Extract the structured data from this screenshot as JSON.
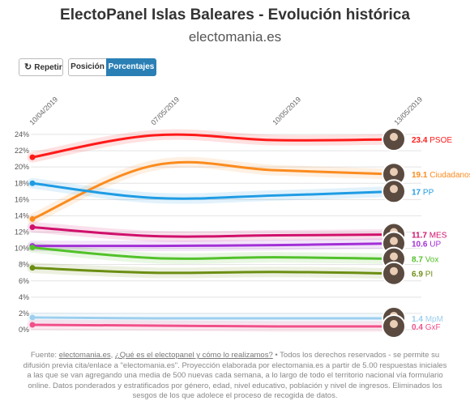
{
  "header": {
    "title": "ElectoPanel Islas Baleares - Evolución histórica",
    "subtitle": "electomania.es"
  },
  "controls": {
    "repeat_label": "Repetir",
    "repeat_icon": "refresh-icon",
    "position_label": "Posición",
    "percent_label": "Porcentajes",
    "active": "Porcentajes",
    "active_color": "#2a7fb5"
  },
  "footer": {
    "prefix": "Fuente: ",
    "source_link": "electomania.es",
    "sep": ", ",
    "faq_link": "¿Qué es el electopanel y cómo lo realizamos?",
    "body": " • Todos los derechos reservados - se permite su difusión previa cita/enlace a \"electomania.es\". Proyección elaborada por electomania.es a partir de 5.00 respuestas iniciales a las que se van agregando una media de 500 nuevas cada semana, a lo largo de todo el territorio nacional vía formulario online. Datos ponderados y estratificados por género, edad, nivel educativo, población y nivel de ingresos. Eliminados los sesgos de los que adolece el proceso de recogida de datos."
  },
  "chart_data": {
    "type": "line",
    "x": [
      "10/04/2019",
      "07/05/2019",
      "10/05/2019",
      "13/05/2019"
    ],
    "y_ticks": [
      "0%",
      "2%",
      "4%",
      "6%",
      "8%",
      "10%",
      "12%",
      "14%",
      "16%",
      "18%",
      "20%",
      "22%",
      "24%"
    ],
    "ylim": [
      0,
      24
    ],
    "grid": true,
    "series": [
      {
        "name": "PSOE",
        "label": "23.4",
        "color": "#ff1a1a",
        "values": [
          21.2,
          23.9,
          23.3,
          23.4
        ]
      },
      {
        "name": "Ciudadanos",
        "label": "19.1",
        "color": "#fb8b1e",
        "values": [
          13.6,
          20.2,
          19.6,
          19.1
        ]
      },
      {
        "name": "PP",
        "label": "17",
        "color": "#1f9ce4",
        "values": [
          18.0,
          16.2,
          16.5,
          17.0
        ]
      },
      {
        "name": "MES",
        "label": "11.7",
        "color": "#d0106b",
        "values": [
          12.6,
          11.5,
          11.6,
          11.7
        ]
      },
      {
        "name": "UP",
        "label": "10.6",
        "color": "#a22fd6",
        "values": [
          10.3,
          10.3,
          10.4,
          10.6
        ]
      },
      {
        "name": "Vox",
        "label": "8.7",
        "color": "#52c12a",
        "values": [
          10.1,
          8.8,
          8.9,
          8.7
        ]
      },
      {
        "name": "PI",
        "label": "6.9",
        "color": "#6b8e12",
        "values": [
          7.6,
          7.0,
          7.1,
          6.9
        ]
      },
      {
        "name": "MpM",
        "label": "1.4",
        "color": "#9ecfee",
        "values": [
          1.5,
          1.4,
          1.4,
          1.4
        ]
      },
      {
        "name": "GxF",
        "label": "0.4",
        "color": "#f0508a",
        "values": [
          0.6,
          0.5,
          0.4,
          0.4
        ]
      }
    ]
  }
}
